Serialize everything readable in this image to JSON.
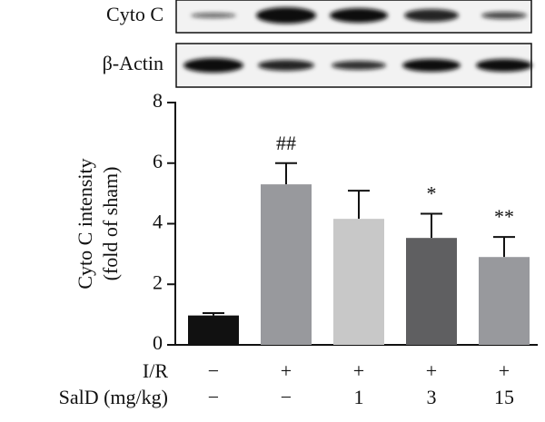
{
  "chart_data": {
    "type": "bar",
    "blots": [
      "Cyto C",
      "β-Actin"
    ],
    "ylabel": [
      "Cyto C intensity",
      "(fold of sham)"
    ],
    "values": [
      0.97,
      5.3,
      4.16,
      3.53,
      2.9
    ],
    "errors": [
      0.08,
      0.7,
      0.93,
      0.8,
      0.66
    ],
    "colors": [
      "#111111",
      "#98999d",
      "#c8c8c8",
      "#5f5f61",
      "#98999d"
    ],
    "annotations": [
      null,
      "##",
      null,
      "*",
      "**"
    ],
    "category_rows": [
      {
        "label": "I/R",
        "values": [
          "−",
          "+",
          "+",
          "+",
          "+"
        ]
      },
      {
        "label": "SalD (mg/kg)",
        "values": [
          "−",
          "−",
          "1",
          "3",
          "15"
        ]
      }
    ],
    "ylim": [
      0,
      8
    ],
    "yticks": [
      0,
      2,
      4,
      6,
      8
    ]
  }
}
